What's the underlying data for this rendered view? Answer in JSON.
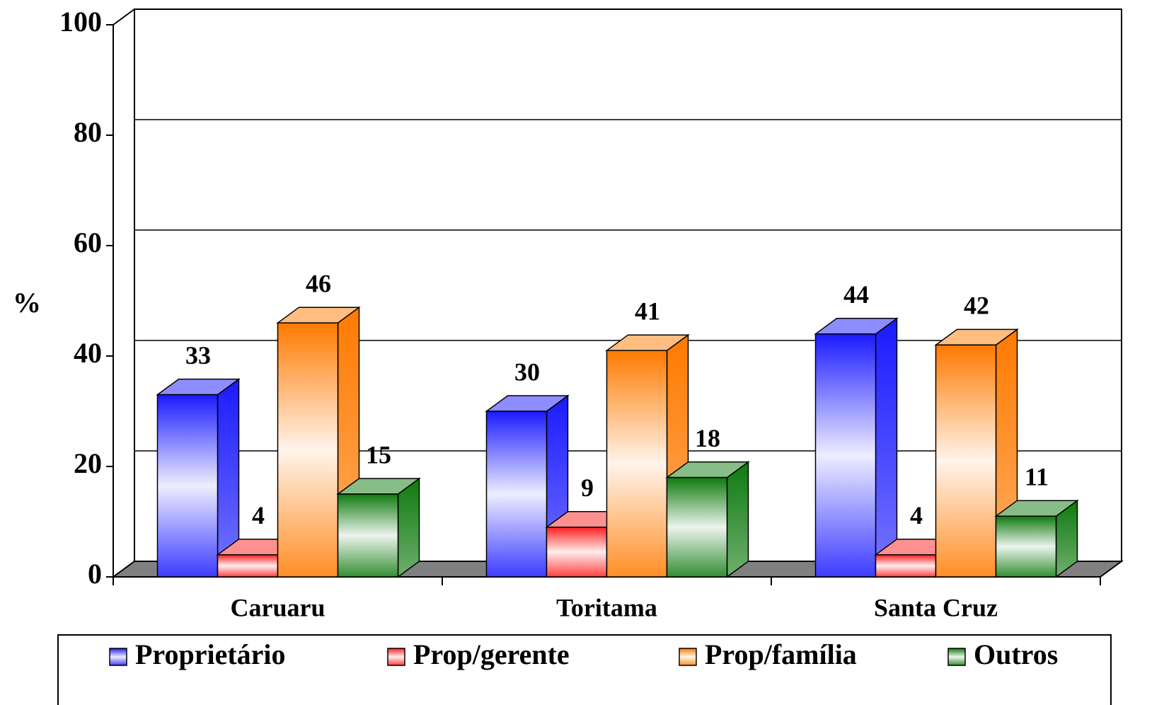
{
  "chart_data": {
    "type": "bar",
    "y_label": "%",
    "categories": [
      "Caruaru",
      "Toritama",
      "Santa Cruz"
    ],
    "series": [
      {
        "name": "Proprietário",
        "color": "#1a1aff",
        "values": [
          33,
          30,
          44
        ]
      },
      {
        "name": "Prop/gerente",
        "color": "#ff2020",
        "values": [
          4,
          9,
          4
        ]
      },
      {
        "name": "Prop/família",
        "color": "#ff7a00",
        "values": [
          46,
          41,
          42
        ]
      },
      {
        "name": "Outros",
        "color": "#0f7a0f",
        "values": [
          15,
          18,
          11
        ]
      }
    ],
    "ylim": [
      0,
      100
    ],
    "yticks": [
      0,
      20,
      40,
      60,
      80,
      100
    ],
    "grid": true,
    "legend": "bottom"
  }
}
